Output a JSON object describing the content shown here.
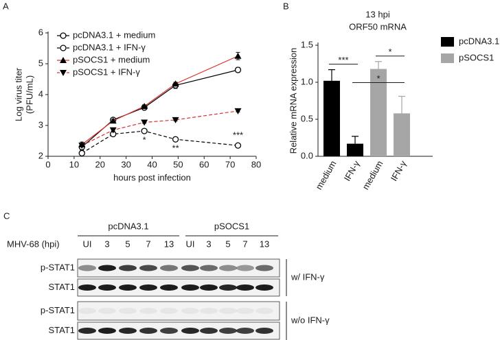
{
  "chart_data": [
    {
      "type": "line",
      "panel": "A",
      "xlabel": "hours post infection",
      "ylabel": [
        "Log virus titer",
        "(PFU/mL)"
      ],
      "xlim": [
        0,
        80
      ],
      "xticks": [
        0,
        10,
        20,
        30,
        40,
        50,
        60,
        70,
        80
      ],
      "ylim": [
        2,
        6
      ],
      "yticks": [
        2,
        3,
        4,
        5,
        6
      ],
      "x": [
        13,
        25,
        37,
        49,
        73
      ],
      "series": [
        {
          "name": "pcDNA3.1 + medium",
          "color": "#000000",
          "marker_color": "#000000",
          "marker": "open-circle",
          "linestyle": "solid",
          "values": [
            2.3,
            3.18,
            3.58,
            4.3,
            4.8
          ],
          "errors": [
            0.1,
            0.05,
            0.05,
            0.1,
            0.08
          ]
        },
        {
          "name": "pcDNA3.1 + IFN-γ",
          "color": "#000000",
          "marker_color": "#000000",
          "marker": "open-circle",
          "linestyle": "dashed",
          "values": [
            2.1,
            2.72,
            2.82,
            2.55,
            2.35
          ],
          "errors": [
            0.06,
            0.04,
            0.04,
            0.03,
            0.05
          ]
        },
        {
          "name": "pSOCS1 + medium",
          "color": "#d9302a",
          "marker_color": "#000000",
          "marker": "triangle-up",
          "linestyle": "solid",
          "values": [
            2.38,
            3.15,
            3.62,
            4.35,
            5.25
          ],
          "errors": [
            0.08,
            0.05,
            0.05,
            0.05,
            0.12
          ]
        },
        {
          "name": "pSOCS1 + IFN-γ",
          "color": "#d9302a",
          "marker_color": "#000000",
          "marker": "triangle-down",
          "linestyle": "dashed",
          "values": [
            2.35,
            2.85,
            3.1,
            3.18,
            3.47
          ],
          "errors": [
            0.05,
            0.03,
            0.03,
            0.03,
            0.03
          ]
        }
      ],
      "annotations": [
        {
          "text": "*",
          "x": 37,
          "position": "below"
        },
        {
          "text": "**",
          "x": 49,
          "position": "below"
        },
        {
          "text": "***",
          "x": 73,
          "position": "above"
        }
      ],
      "legend": "upper left"
    },
    {
      "type": "bar",
      "panel": "B",
      "title": [
        "13 hpi",
        "ORF50 mRNA"
      ],
      "ylabel": "Relative mRNA expression",
      "categories": [
        "medium",
        "IFN-γ",
        "medium",
        "IFN-γ"
      ],
      "ylim": [
        0,
        1.5
      ],
      "yticks": [
        {
          "value": 0,
          "label": "0.0"
        },
        {
          "value": 0.5,
          "label": "0.5"
        },
        {
          "value": 1,
          "label": "1.0"
        },
        {
          "value": 1.5,
          "label": "1.5"
        }
      ],
      "series": [
        {
          "name": "pcDNA3.1",
          "color": "#000000",
          "values": [
            1.02,
            0.17,
            null,
            null
          ],
          "errors": [
            0.15,
            0.1,
            null,
            null
          ]
        },
        {
          "name": "pSOCS1",
          "color": "#a6a6a6",
          "values": [
            null,
            null,
            1.18,
            0.58
          ],
          "errors": [
            null,
            null,
            0.1,
            0.23
          ]
        }
      ],
      "significance": [
        {
          "text": "***",
          "from": 0,
          "to": 1
        },
        {
          "text": "*",
          "from": 1,
          "to": 3
        },
        {
          "text": "*",
          "from": 2,
          "to": 3
        }
      ],
      "legend": "right"
    }
  ],
  "blot": {
    "panel": "C",
    "groups": [
      "pcDNA3.1",
      "pSOCS1"
    ],
    "lane_header": "MHV-68 (hpi)",
    "lanes": [
      [
        "UI",
        "3",
        "5",
        "7",
        "13"
      ],
      [
        "UI",
        "3",
        "5",
        "7",
        "13"
      ]
    ],
    "rows": [
      "p-STAT1",
      "STAT1",
      "p-STAT1",
      "STAT1"
    ],
    "conditions": [
      "w/ IFN-γ",
      "w/o IFN-γ"
    ]
  }
}
